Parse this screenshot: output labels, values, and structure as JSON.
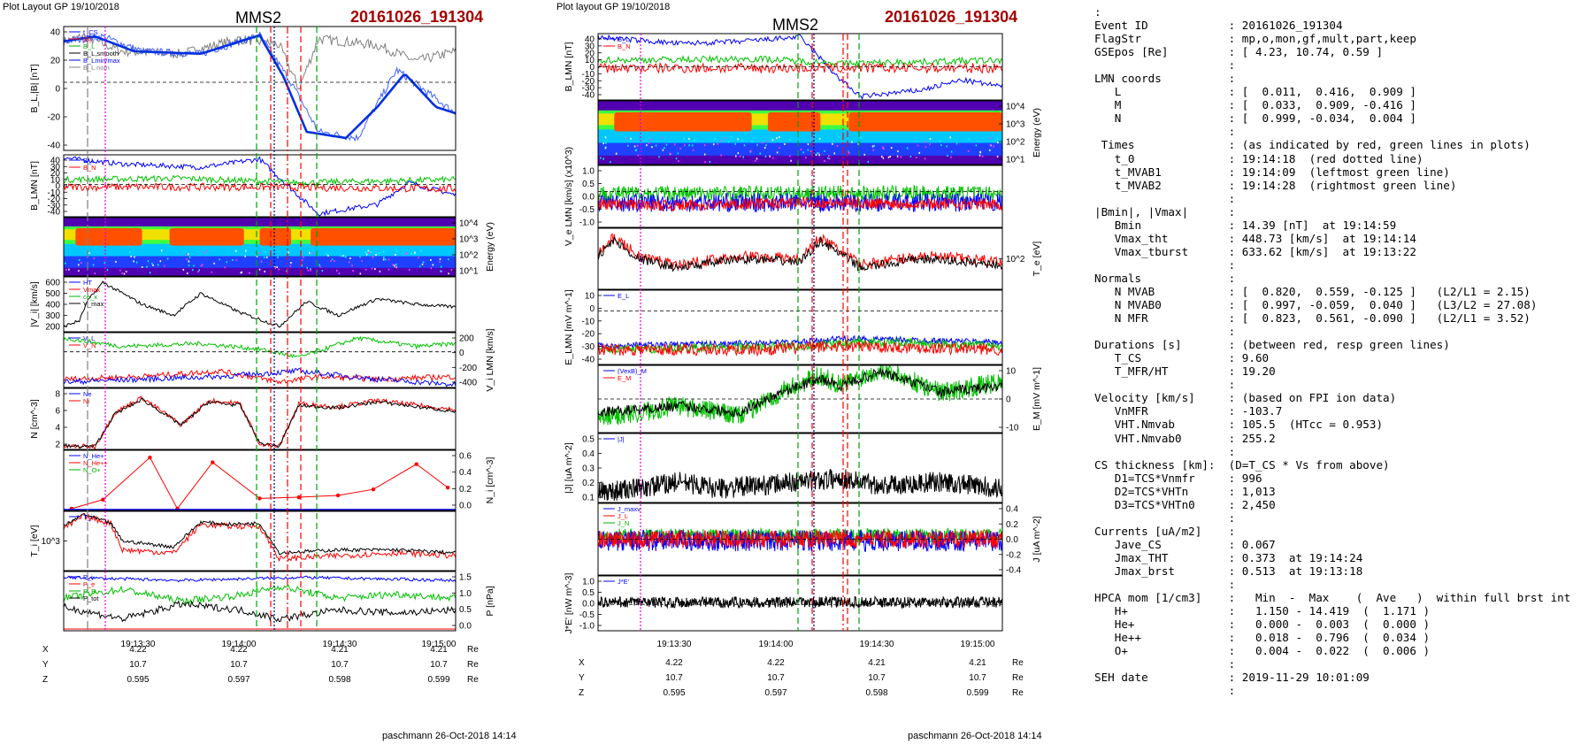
{
  "left_page": {
    "header": "Plot Layout GP 19/10/2018",
    "spacecraft": "MMS2",
    "event": "20161026_191304",
    "footer": "paschmann 26-Oct-2018 14:14",
    "time_ticks": [
      "19:13:30",
      "19:14:00",
      "19:14:30",
      "19:15:00"
    ],
    "position_rows": [
      {
        "label": "X",
        "values": [
          "4.22",
          "4.22",
          "4.21",
          "4.21"
        ],
        "unit": "Re"
      },
      {
        "label": "Y",
        "values": [
          "10.7",
          "10.7",
          "10.7",
          "10.7"
        ],
        "unit": "Re"
      },
      {
        "label": "Z",
        "values": [
          "0.595",
          "0.597",
          "0.598",
          "0.599"
        ],
        "unit": "Re"
      }
    ],
    "panels": [
      {
        "ylabel": "B_L,|B| [nT]",
        "ticks_left": [
          "40",
          "20",
          "0",
          "-20",
          "-40"
        ],
        "ticks_right": [],
        "legend": [
          "t_CS",
          "|B|",
          "B_L",
          "B_L,smooth",
          "B_Lmin/max",
          "B_L nom"
        ]
      },
      {
        "ylabel": "B_LMN [nT]",
        "ticks_left": [
          "40",
          "30",
          "20",
          "10",
          "0",
          "-10",
          "-20",
          "-30",
          "-40"
        ],
        "ticks_right": [],
        "legend": [
          "B_L",
          "B_N"
        ]
      },
      {
        "ylabel": "Energy (eV)",
        "ticks_left": [],
        "ticks_right": [
          "10^4",
          "10^3",
          "10^2",
          "10^1"
        ],
        "legend": []
      },
      {
        "ylabel": "|V_i| [km/s]",
        "ticks_left": [
          "600",
          "500",
          "400",
          "300",
          "200"
        ],
        "ticks_right": [],
        "legend": [
          "HT",
          "Vmax",
          "ce_x",
          "V_max"
        ]
      },
      {
        "ylabel": "V_i LMN [km/s]",
        "ticks_left": [],
        "ticks_right": [
          "200",
          "0",
          "-200",
          "-400"
        ],
        "legend": [
          "V_L",
          "V_N"
        ]
      },
      {
        "ylabel": "N [cm^-3]",
        "ticks_left": [
          "8",
          "6",
          "4",
          "2"
        ],
        "ticks_right": [],
        "legend": [
          "Ne",
          "Ni"
        ]
      },
      {
        "ylabel": "N_i [cm^-3]",
        "ticks_left": [],
        "ticks_right": [
          "0.6",
          "0.4",
          "0.2",
          "0.0"
        ],
        "legend": [
          "N_He+",
          "N_He++",
          "N_O+"
        ]
      },
      {
        "ylabel": "T_i [eV]",
        "ticks_left": [
          "10^3"
        ],
        "ticks_right": [],
        "legend": [
          "T_i"
        ]
      },
      {
        "ylabel": "P [nPa]",
        "ticks_left": [],
        "ticks_right": [
          "1.5",
          "1.0",
          "0.5",
          "0.0"
        ],
        "legend": [
          "P_i",
          "P_e",
          "P_B",
          "P_tot"
        ]
      }
    ]
  },
  "right_page": {
    "header": "Plot layout GP 19/10/2018",
    "spacecraft": "MMS2",
    "event": "20161026_191304",
    "footer": "paschmann 26-Oct-2018 14:14",
    "time_ticks": [
      "19:13:30",
      "19:14:00",
      "19:14:30",
      "19:15:00"
    ],
    "position_rows": [
      {
        "label": "X",
        "values": [
          "4.22",
          "4.22",
          "4.21",
          "4.21"
        ],
        "unit": "Re"
      },
      {
        "label": "Y",
        "values": [
          "10.7",
          "10.7",
          "10.7",
          "10.7"
        ],
        "unit": "Re"
      },
      {
        "label": "Z",
        "values": [
          "0.595",
          "0.597",
          "0.598",
          "0.599"
        ],
        "unit": "Re"
      }
    ],
    "panels": [
      {
        "ylabel": "B_LMN [nT]",
        "ticks_left": [
          "40",
          "30",
          "20",
          "10",
          "0",
          "-10",
          "-20",
          "-30",
          "-40"
        ],
        "ticks_right": [],
        "legend": [
          "B_L",
          "B_N"
        ]
      },
      {
        "ylabel": "Energy (eV)",
        "ticks_left": [],
        "ticks_right": [
          "10^4",
          "10^3",
          "10^2",
          "10^1"
        ],
        "legend": []
      },
      {
        "ylabel": "V_e LMN [km/s] (x10^3)",
        "ticks_left": [
          "1.0",
          "0.5",
          "0.0",
          "-0.5",
          "-1.0"
        ],
        "ticks_right": [],
        "legend": []
      },
      {
        "ylabel": "T_e [eV]",
        "ticks_left": [],
        "ticks_right": [
          "10^2"
        ],
        "legend": []
      },
      {
        "ylabel": "E_LMN [mV m^-1]",
        "ticks_left": [
          "10",
          "0",
          "-10",
          "-20",
          "-30",
          "-40"
        ],
        "ticks_right": [],
        "legend": [
          "E_L"
        ]
      },
      {
        "ylabel": "E_M [mV m^-1]",
        "ticks_left": [],
        "ticks_right": [
          "10",
          "0",
          "-10"
        ],
        "legend": [
          "(VexB)_M",
          "E_M"
        ]
      },
      {
        "ylabel": "|J| [uA m^-2]",
        "ticks_left": [
          "0.5",
          "0.4",
          "0.3",
          "0.2",
          "0.1"
        ],
        "ticks_right": [],
        "legend": [
          "|J|"
        ]
      },
      {
        "ylabel": "J [uA m^-2]",
        "ticks_left": [],
        "ticks_right": [
          "0.4",
          "0.2",
          "0.0",
          "-0.2",
          "-0.4"
        ],
        "legend": [
          "J_maxv",
          "J_L",
          "J_N"
        ]
      },
      {
        "ylabel": "J*E' [nW m^-3]",
        "ticks_left": [
          "1.0",
          "0.5",
          "0.0",
          "-0.5",
          "-1.0"
        ],
        "ticks_right": [],
        "legend": [
          "J*E'"
        ]
      }
    ]
  },
  "summary": {
    "lines": [
      ":",
      "Event ID            : 20161026_191304",
      "FlagStr             : mp,o,mon,gf,mult,part,keep",
      "GSEpos [Re]         : [ 4.23, 10.74, 0.59 ]",
      "                    :",
      "LMN coords          :",
      "   L                : [  0.011,  0.416,  0.909 ]",
      "   M                : [  0.033,  0.909, -0.416 ]",
      "   N                : [  0.999, -0.034,  0.004 ]",
      "                    :",
      " Times              : (as indicated by red, green lines in plots)",
      "   t_0              : 19:14:18  (red dotted line)",
      "   t_MVAB1          : 19:14:09  (leftmost green line)",
      "   t_MVAB2          : 19:14:28  (rightmost green line)",
      "                    :",
      "|Bmin|, |Vmax|      :",
      "   Bmin             : 14.39 [nT]  at 19:14:59",
      "   Vmax_tht         : 448.73 [km/s]  at 19:14:14",
      "   Vmax_tburst      : 633.62 [km/s]  at 19:13:22",
      "                    :",
      "Normals             :",
      "   N MVAB           : [  0.820,  0.559, -0.125 ]   (L2/L1 = 2.15)",
      "   N MVAB0          : [  0.997, -0.059,  0.040 ]   (L3/L2 = 27.08)",
      "   N MFR            : [  0.823,  0.561, -0.090 ]   (L2/L1 = 3.52)",
      "                    :",
      "Durations [s]       : (between red, resp green lines)",
      "   T_CS             : 9.60",
      "   T_MFR/HT         : 19.20",
      "                    :",
      "Velocity [km/s]     : (based on FPI ion data)",
      "   VnMFR            : -103.7",
      "   VHT.Nmvab        : 105.5  (HTcc = 0.953)",
      "   VHT.Nmvab0       : 255.2",
      "                    :",
      "CS thickness [km]:  (D=T_CS * Vs from above)",
      "   D1=TCS*Vnmfr     : 996",
      "   D2=TCS*VHTn      : 1,013",
      "   D3=TCS*VHTn0     : 2,450",
      "                    :",
      "Currents [uA/m2]    :",
      "   Jave_CS          : 0.067",
      "   Jmax_THT         : 0.373  at 19:14:24",
      "   Jmax_brst        : 0.513  at 19:13:18",
      "                    :",
      "HPCA mom [1/cm3]    :   Min  -  Max    (  Ave   )  within full brst int",
      "   H+               :   1.150 - 14.419  (  1.171 )",
      "   He+              :   0.000 -  0.003  (  0.000 )",
      "   He++             :   0.018 -  0.796  (  0.034 )",
      "   O+               :   0.004 -  0.022  (  0.006 )",
      "                    :",
      "SEH date            : 2019-11-29 10:01:09",
      "                    :"
    ]
  },
  "colors": {
    "event": "#a50000",
    "green": "#00c000",
    "red": "#ff0000",
    "blue": "#0000ff",
    "magenta": "#e000e0",
    "dash_green": "#00a000"
  },
  "chart_data": [
    {
      "type": "line",
      "title": "MMS2 20161026_191304",
      "xlabel": "UT",
      "x_ticks": [
        "19:13:30",
        "19:14:00",
        "19:14:30",
        "19:15:00"
      ],
      "panels": [
        {
          "ylabel": "B_L,|B| [nT]",
          "ylim": [
            -45,
            45
          ],
          "series": [
            {
              "name": "B_L",
              "color": "#0000ff",
              "x": [
                "19:13:08",
                "19:13:25",
                "19:13:40",
                "19:13:55",
                "19:14:05",
                "19:14:15",
                "19:14:28",
                "19:14:40",
                "19:14:55",
                "19:15:10",
                "19:15:22"
              ],
              "values": [
                37,
                38,
                30,
                29,
                40,
                15,
                -25,
                -35,
                -30,
                8,
                -18
              ]
            }
          ]
        },
        {
          "ylabel": "B_LMN [nT]",
          "ylim": [
            -40,
            40
          ],
          "series": [
            {
              "name": "B_L",
              "color": "#0000ff",
              "values": [
                37,
                30,
                29,
                38,
                10,
                -35,
                -30,
                5,
                -15
              ]
            },
            {
              "name": "B_N",
              "color": "#ff0000",
              "values": [
                0,
                1,
                -1,
                0,
                3,
                -5,
                -2,
                0,
                -1
              ]
            }
          ]
        },
        {
          "ylabel": "|V_i| [km/s]",
          "ylim": [
            150,
            650
          ],
          "series": [
            {
              "name": "|V_i|",
              "values": [
                200,
                550,
                420,
                380,
                260,
                390,
                280,
                340,
                330
              ]
            }
          ]
        },
        {
          "ylabel": "N [cm^-3]",
          "ylim": [
            0,
            9
          ],
          "series": [
            {
              "name": "Ne",
              "color": "#ff0000",
              "values": [
                1,
                7.5,
                3,
                7,
                1,
                7,
                6,
                6.5,
                6
              ]
            },
            {
              "name": "Ni",
              "values": [
                1,
                7.3,
                3,
                6.8,
                1,
                6.8,
                5.8,
                6.3,
                6
              ]
            }
          ]
        },
        {
          "ylabel": "N_i [cm^-3]",
          "ylim": [
            0,
            0.7
          ],
          "series": [
            {
              "name": "N He++",
              "color": "#ff0000",
              "x": [
                "19:13:10",
                "19:13:20",
                "19:13:35",
                "19:13:50",
                "19:14:00",
                "19:14:12",
                "19:14:24",
                "19:14:36",
                "19:14:48",
                "19:15:00",
                "19:15:10"
              ],
              "values": [
                0.02,
                0.12,
                0.62,
                0.02,
                0.55,
                0.15,
                0.17,
                0.18,
                0.25,
                0.53,
                0.26
              ]
            }
          ]
        }
      ]
    },
    {
      "type": "line",
      "title": "MMS2 20161026_191304",
      "xlabel": "UT",
      "x_ticks": [
        "19:13:30",
        "19:14:00",
        "19:14:30",
        "19:15:00"
      ],
      "panels": [
        {
          "ylabel": "B_LMN [nT]",
          "ylim": [
            -40,
            45
          ]
        },
        {
          "ylabel": "V_e LMN [km/s] (x10^3)",
          "ylim": [
            -1.3,
            1.2
          ]
        },
        {
          "ylabel": "E_LMN [mV m^-1]",
          "ylim": [
            -40,
            15
          ]
        },
        {
          "ylabel": "|J| [uA m^-2]",
          "ylim": [
            0,
            0.5
          ]
        },
        {
          "ylabel": "J*E' [nW m^-3]",
          "ylim": [
            -1.2,
            1.2
          ]
        }
      ]
    }
  ]
}
